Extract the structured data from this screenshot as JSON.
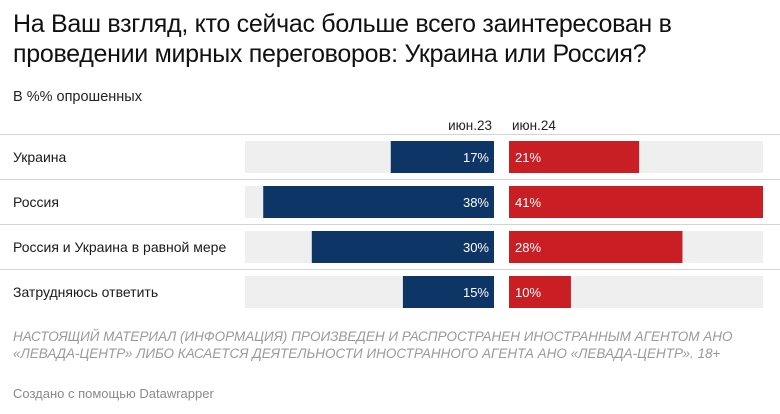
{
  "title": "На Ваш взгляд, кто сейчас больше всего заинтересован в проведении мирных переговоров: Украина или Россия?",
  "subtitle": "В %% опрошенных",
  "note": "НАСТОЯЩИЙ МАТЕРИАЛ (ИНФОРМАЦИЯ) ПРОИЗВЕДЕН И РАСПРОСТРАНЕН ИНОСТРАННЫМ АГЕНТОМ АНО «ЛЕВАДА-ЦЕНТР» ЛИБО КАСАЕТСЯ ДЕЯТЕЛЬНОСТИ ИНОСТРАННОГО АГЕНТА АНО «ЛЕВАДА-ЦЕНТР». 18+",
  "credit": "Создано с помощью Datawrapper",
  "colors": {
    "series_1": "#0d3566",
    "series_2": "#c91f24",
    "track": "#efefef",
    "separator": "#d4d4d4"
  },
  "chart_data": {
    "type": "bar",
    "layout": "split-bars",
    "categories": [
      "Украина",
      "Россия",
      "Россия и Украина в равной мере",
      "Затрудняюсь ответить"
    ],
    "series": [
      {
        "name": "июн.23",
        "values": [
          17,
          38,
          30,
          15
        ],
        "value_labels": [
          "17%",
          "38%",
          "30%",
          "15%"
        ],
        "direction": "left"
      },
      {
        "name": "июн.24",
        "values": [
          21,
          41,
          28,
          10
        ],
        "value_labels": [
          "21%",
          "41%",
          "28%",
          "10%"
        ],
        "direction": "right"
      }
    ],
    "xlim": [
      0,
      41
    ],
    "grid": false
  }
}
